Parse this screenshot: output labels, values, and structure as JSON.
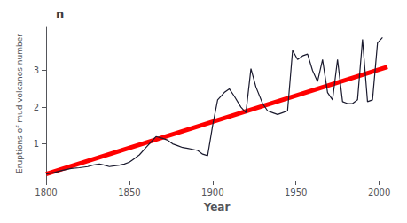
{
  "chart_data": {
    "type": "line",
    "title": "n",
    "xlabel": "Year",
    "ylabel": "Eruptions of mud volcanos number",
    "xlim": [
      1800,
      2005
    ],
    "ylim": [
      0,
      4.2
    ],
    "xticks": [
      1800,
      1850,
      1900,
      1950,
      2000
    ],
    "yticks": [
      1,
      2,
      3
    ],
    "grid": false,
    "series": [
      {
        "color": "#ff0000",
        "x": [
          1800,
          2005
        ],
        "values": [
          0.18,
          3.1
        ]
      },
      {
        "color": "#1a1a2e",
        "x": [
          1800,
          1805,
          1810,
          1815,
          1820,
          1825,
          1828,
          1832,
          1835,
          1838,
          1841,
          1844,
          1847,
          1850,
          1853,
          1856,
          1860,
          1863,
          1866,
          1870,
          1873,
          1876,
          1879,
          1882,
          1885,
          1888,
          1891,
          1894,
          1897,
          1900,
          1903,
          1907,
          1910,
          1913,
          1917,
          1920,
          1923,
          1926,
          1930,
          1933,
          1936,
          1939,
          1942,
          1945,
          1948,
          1951,
          1954,
          1957,
          1960,
          1963,
          1966,
          1969,
          1972,
          1975,
          1978,
          1981,
          1984,
          1987,
          1990,
          1993,
          1996,
          1999,
          2002
        ],
        "values": [
          0.18,
          0.22,
          0.28,
          0.33,
          0.35,
          0.38,
          0.42,
          0.45,
          0.42,
          0.38,
          0.4,
          0.42,
          0.45,
          0.5,
          0.6,
          0.7,
          0.9,
          1.05,
          1.2,
          1.15,
          1.1,
          1.0,
          0.95,
          0.9,
          0.88,
          0.85,
          0.82,
          0.72,
          0.68,
          1.5,
          2.2,
          2.4,
          2.5,
          2.3,
          2.0,
          1.85,
          3.05,
          2.55,
          2.1,
          1.9,
          1.85,
          1.8,
          1.85,
          1.9,
          3.55,
          3.3,
          3.4,
          3.45,
          3.0,
          2.7,
          3.3,
          2.4,
          2.2,
          3.3,
          2.15,
          2.1,
          2.1,
          2.2,
          3.85,
          2.15,
          2.2,
          3.75,
          3.9
        ]
      }
    ]
  }
}
